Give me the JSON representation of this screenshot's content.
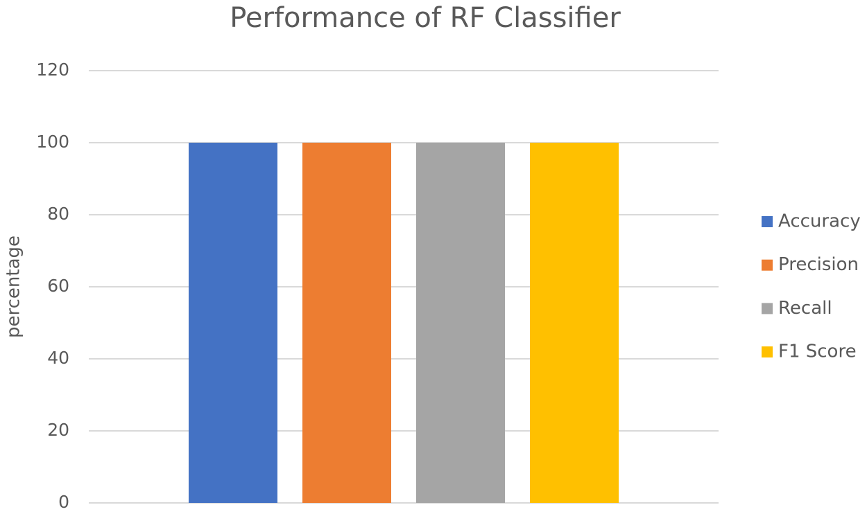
{
  "chart_data": {
    "type": "bar",
    "title": "Performance of RF Classifier",
    "y_label": "percentage",
    "categories": [
      null
    ],
    "series": [
      {
        "name": "Accuracy",
        "color": "#4472c4",
        "values": [
          100
        ]
      },
      {
        "name": "Precision",
        "color": "#ed7d31",
        "values": [
          100
        ]
      },
      {
        "name": "Recall",
        "color": "#a5a5a5",
        "values": [
          100
        ]
      },
      {
        "name": "F1 Score",
        "color": "#ffc000",
        "values": [
          100
        ]
      }
    ],
    "ylim": [
      0,
      120
    ],
    "yticks": [
      0,
      20,
      40,
      60,
      80,
      100,
      120
    ],
    "grid": true,
    "legend": "right"
  }
}
